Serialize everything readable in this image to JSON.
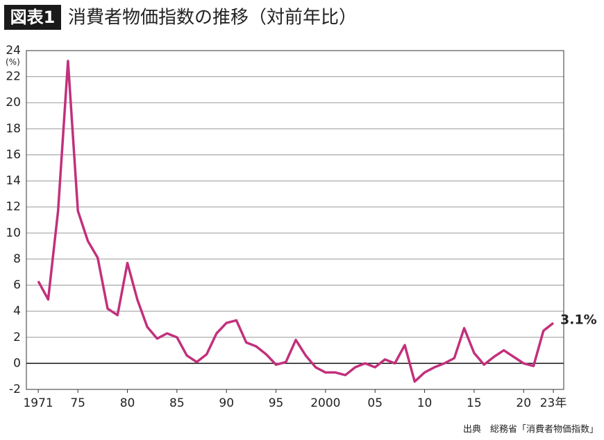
{
  "chart_data": {
    "type": "line",
    "badge": "図表1",
    "title": "消費者物価指数の推移（対前年比）",
    "y_label": "(%)",
    "source": "出典　総務省「消費者物価指数」",
    "annotation": "3.1%",
    "x": [
      1971,
      1972,
      1973,
      1974,
      1975,
      1976,
      1977,
      1978,
      1979,
      1980,
      1981,
      1982,
      1983,
      1984,
      1985,
      1986,
      1987,
      1988,
      1989,
      1990,
      1991,
      1992,
      1993,
      1994,
      1995,
      1996,
      1997,
      1998,
      1999,
      2000,
      2001,
      2002,
      2003,
      2004,
      2005,
      2006,
      2007,
      2008,
      2009,
      2010,
      2011,
      2012,
      2013,
      2014,
      2015,
      2016,
      2017,
      2018,
      2019,
      2020,
      2021,
      2022,
      2023
    ],
    "values": [
      6.3,
      4.9,
      11.7,
      23.2,
      11.7,
      9.4,
      8.1,
      4.2,
      3.7,
      7.7,
      4.9,
      2.8,
      1.9,
      2.3,
      2.0,
      0.6,
      0.1,
      0.7,
      2.3,
      3.1,
      3.3,
      1.6,
      1.3,
      0.7,
      -0.1,
      0.1,
      1.8,
      0.6,
      -0.3,
      -0.7,
      -0.7,
      -0.9,
      -0.3,
      0.0,
      -0.3,
      0.3,
      0.0,
      1.4,
      -1.4,
      -0.7,
      -0.3,
      0.0,
      0.4,
      2.7,
      0.8,
      -0.1,
      0.5,
      1.0,
      0.5,
      0.0,
      -0.2,
      2.5,
      3.1
    ],
    "color": "#c2307c",
    "xlim": [
      1969.8,
      2024.05
    ],
    "ylim": [
      -2,
      24
    ],
    "xticks": [
      1971,
      {
        "value": 1975,
        "label": "75"
      },
      {
        "value": 1980,
        "label": "80"
      },
      {
        "value": 1985,
        "label": "85"
      },
      {
        "value": 1990,
        "label": "90"
      },
      {
        "value": 1995,
        "label": "95"
      },
      2000,
      {
        "value": 2005,
        "label": "05"
      },
      {
        "value": 2010,
        "label": "10"
      },
      {
        "value": 2015,
        "label": "15"
      },
      {
        "value": 2020,
        "label": "20"
      },
      {
        "value": 2023,
        "label": "23年"
      }
    ],
    "yticks": [
      -2,
      0,
      2,
      4,
      6,
      8,
      10,
      12,
      14,
      16,
      18,
      20,
      22,
      24
    ],
    "grid": true
  }
}
